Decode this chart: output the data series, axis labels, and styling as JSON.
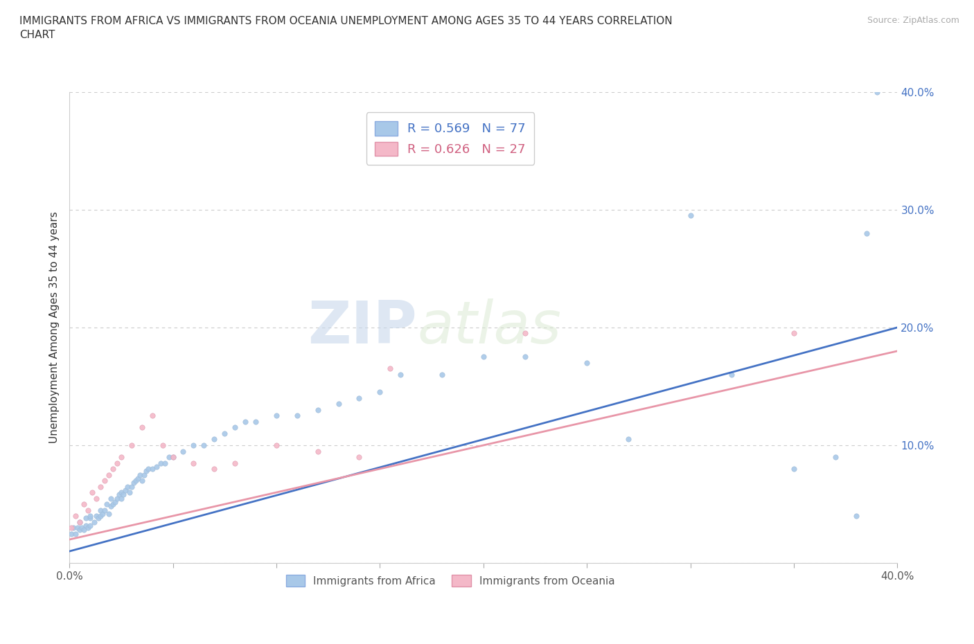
{
  "title": "IMMIGRANTS FROM AFRICA VS IMMIGRANTS FROM OCEANIA UNEMPLOYMENT AMONG AGES 35 TO 44 YEARS CORRELATION\nCHART",
  "source_text": "Source: ZipAtlas.com",
  "ylabel": "Unemployment Among Ages 35 to 44 years",
  "xlim": [
    0.0,
    0.4
  ],
  "ylim": [
    0.0,
    0.4
  ],
  "africa_color": "#a8c8e8",
  "oceania_color": "#f4b8c8",
  "africa_line_color": "#4472c4",
  "oceania_line_color": "#e896a8",
  "africa_R": 0.569,
  "africa_N": 77,
  "oceania_R": 0.626,
  "oceania_N": 27,
  "watermark_zip": "ZIP",
  "watermark_atlas": "atlas",
  "legend_africa_label": "R = 0.569   N = 77",
  "legend_oceania_label": "R = 0.626   N = 27",
  "bottom_legend_africa": "Immigrants from Africa",
  "bottom_legend_oceania": "Immigrants from Oceania",
  "africa_line_x0": 0.0,
  "africa_line_y0": 0.01,
  "africa_line_x1": 0.4,
  "africa_line_y1": 0.2,
  "oceania_line_x0": 0.0,
  "oceania_line_y0": 0.02,
  "oceania_line_x1": 0.4,
  "oceania_line_y1": 0.18,
  "africa_x": [
    0.001,
    0.002,
    0.003,
    0.004,
    0.005,
    0.005,
    0.006,
    0.007,
    0.008,
    0.008,
    0.009,
    0.01,
    0.01,
    0.01,
    0.012,
    0.013,
    0.014,
    0.015,
    0.015,
    0.016,
    0.017,
    0.018,
    0.019,
    0.02,
    0.02,
    0.021,
    0.022,
    0.023,
    0.024,
    0.025,
    0.025,
    0.026,
    0.027,
    0.028,
    0.029,
    0.03,
    0.031,
    0.032,
    0.033,
    0.034,
    0.035,
    0.036,
    0.037,
    0.038,
    0.04,
    0.042,
    0.044,
    0.046,
    0.048,
    0.05,
    0.055,
    0.06,
    0.065,
    0.07,
    0.075,
    0.08,
    0.085,
    0.09,
    0.1,
    0.11,
    0.12,
    0.13,
    0.14,
    0.15,
    0.16,
    0.18,
    0.2,
    0.22,
    0.25,
    0.27,
    0.3,
    0.32,
    0.35,
    0.37,
    0.385,
    0.38,
    0.39
  ],
  "africa_y": [
    0.025,
    0.03,
    0.025,
    0.03,
    0.028,
    0.035,
    0.03,
    0.028,
    0.032,
    0.038,
    0.03,
    0.032,
    0.038,
    0.04,
    0.035,
    0.04,
    0.038,
    0.04,
    0.045,
    0.042,
    0.045,
    0.05,
    0.042,
    0.048,
    0.055,
    0.05,
    0.052,
    0.055,
    0.058,
    0.055,
    0.06,
    0.058,
    0.062,
    0.065,
    0.06,
    0.065,
    0.068,
    0.07,
    0.072,
    0.075,
    0.07,
    0.075,
    0.078,
    0.08,
    0.08,
    0.082,
    0.085,
    0.085,
    0.09,
    0.09,
    0.095,
    0.1,
    0.1,
    0.105,
    0.11,
    0.115,
    0.12,
    0.12,
    0.125,
    0.125,
    0.13,
    0.135,
    0.14,
    0.145,
    0.16,
    0.16,
    0.175,
    0.175,
    0.17,
    0.105,
    0.295,
    0.16,
    0.08,
    0.09,
    0.28,
    0.04,
    0.4
  ],
  "oceania_x": [
    0.001,
    0.003,
    0.005,
    0.007,
    0.009,
    0.011,
    0.013,
    0.015,
    0.017,
    0.019,
    0.021,
    0.023,
    0.025,
    0.03,
    0.035,
    0.04,
    0.045,
    0.05,
    0.06,
    0.07,
    0.08,
    0.1,
    0.12,
    0.14,
    0.155,
    0.22,
    0.35
  ],
  "oceania_y": [
    0.03,
    0.04,
    0.035,
    0.05,
    0.045,
    0.06,
    0.055,
    0.065,
    0.07,
    0.075,
    0.08,
    0.085,
    0.09,
    0.1,
    0.115,
    0.125,
    0.1,
    0.09,
    0.085,
    0.08,
    0.085,
    0.1,
    0.095,
    0.09,
    0.165,
    0.195,
    0.195
  ]
}
